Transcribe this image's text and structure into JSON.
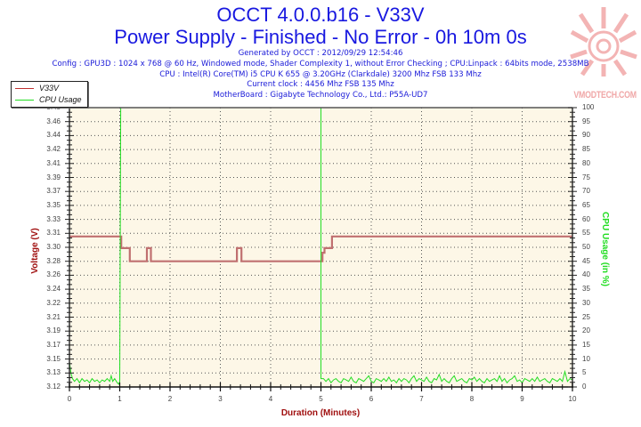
{
  "header": {
    "title": "OCCT 4.0.0.b16 - V33V",
    "subtitle": "Power Supply - Finished - No Error - 0h 10m 0s",
    "info_lines": [
      "Generated by OCCT : 2012/09/29 12:54:46",
      "Config : GPU3D : 1024 x 768 @ 60 Hz, Windowed mode, Shader Complexity 1, without Error Checking ; CPU:Linpack : 64bits mode, 2538MB",
      "CPU : Intel(R) Core(TM) i5 CPU K 655 @ 3.20GHz (Clarkdale) 3200 Mhz FSB 133 Mhz",
      "Current clock : 4456 Mhz FSB 135 Mhz",
      "MotherBoard : Gigabyte Technology Co., Ltd.: P55A-UD7"
    ]
  },
  "watermark": {
    "text": "VMODTECH.COM",
    "icon": "sunburst-logo-icon",
    "color": "#f2a8a8"
  },
  "legend": {
    "items": [
      {
        "label": "V33V",
        "color": "#c03030"
      },
      {
        "label": "CPU Usage",
        "color": "#22dd22"
      }
    ]
  },
  "colors": {
    "title": "#1818e0",
    "plot_background": "#fdf7e7",
    "voltage_line": "#c07070",
    "cpu_line": "#22dd22",
    "left_axis_label": "#a01010",
    "right_axis_label": "#22dd22",
    "grid": "#555555"
  },
  "chart_data": {
    "type": "line",
    "title": "OCCT 4.0.0.b16 - V33V",
    "subtitle": "Power Supply - Finished - No Error - 0h 10m 0s",
    "xlabel": "Duration (Minutes)",
    "ylabel": "Voltage (V)",
    "y2label": "CPU Usage (in %)",
    "xlim": [
      0,
      10
    ],
    "ylim": [
      3.12,
      3.48
    ],
    "y2lim": [
      0,
      100
    ],
    "grid": true,
    "legend_position": "top-left",
    "xticks": [
      "0",
      "1",
      "2",
      "3",
      "4",
      "5",
      "6",
      "7",
      "8",
      "9",
      "10"
    ],
    "yticks_top_to_bottom": [
      "3.48",
      "3.46",
      "3.44",
      "3.42",
      "3.41",
      "3.39",
      "3.37",
      "3.35",
      "3.33",
      "3.31",
      "3.30",
      "3.28",
      "3.26",
      "3.24",
      "3.22",
      "3.21",
      "3.19",
      "3.17",
      "3.15",
      "3.13",
      "3.12"
    ],
    "y2ticks_top_to_bottom": [
      "100",
      "95",
      "90",
      "85",
      "80",
      "75",
      "70",
      "65",
      "60",
      "55",
      "50",
      "45",
      "40",
      "35",
      "30",
      "25",
      "20",
      "15",
      "10",
      "5",
      "0"
    ],
    "series": [
      {
        "name": "V33V",
        "axis": "left",
        "color": "#c07070",
        "points": [
          [
            0,
            3.314
          ],
          [
            1.03,
            3.314
          ],
          [
            1.03,
            3.299
          ],
          [
            1.2,
            3.299
          ],
          [
            1.2,
            3.282
          ],
          [
            1.54,
            3.282
          ],
          [
            1.54,
            3.299
          ],
          [
            1.62,
            3.299
          ],
          [
            1.62,
            3.282
          ],
          [
            3.33,
            3.282
          ],
          [
            3.33,
            3.299
          ],
          [
            3.42,
            3.299
          ],
          [
            3.42,
            3.282
          ],
          [
            5.03,
            3.282
          ],
          [
            5.03,
            3.293
          ],
          [
            5.07,
            3.293
          ],
          [
            5.07,
            3.299
          ],
          [
            5.22,
            3.299
          ],
          [
            5.22,
            3.314
          ],
          [
            10,
            3.314
          ]
        ]
      },
      {
        "name": "CPU Usage",
        "axis": "right",
        "color": "#22dd22",
        "points": [
          [
            0,
            9
          ],
          [
            0.03,
            5
          ],
          [
            0.06,
            3
          ],
          [
            0.1,
            2
          ],
          [
            0.15,
            3
          ],
          [
            0.2,
            1.5
          ],
          [
            0.25,
            3
          ],
          [
            0.3,
            2
          ],
          [
            0.35,
            2.5
          ],
          [
            0.4,
            1.5
          ],
          [
            0.45,
            3
          ],
          [
            0.5,
            2
          ],
          [
            0.55,
            2.5
          ],
          [
            0.6,
            1.5
          ],
          [
            0.65,
            2.5
          ],
          [
            0.7,
            2
          ],
          [
            0.75,
            3
          ],
          [
            0.8,
            2
          ],
          [
            0.83,
            4
          ],
          [
            0.86,
            2
          ],
          [
            0.9,
            3
          ],
          [
            0.95,
            1.5
          ],
          [
            0.98,
            1
          ],
          [
            1.0,
            2
          ],
          [
            1.02,
            100
          ],
          [
            5.0,
            100
          ],
          [
            5.0,
            3
          ],
          [
            5.05,
            3
          ],
          [
            5.1,
            2
          ],
          [
            5.15,
            3
          ],
          [
            5.2,
            1.5
          ],
          [
            5.25,
            2.5
          ],
          [
            5.3,
            3
          ],
          [
            5.35,
            2
          ],
          [
            5.4,
            1.5
          ],
          [
            5.45,
            3
          ],
          [
            5.5,
            2.5
          ],
          [
            5.55,
            2
          ],
          [
            5.6,
            3.5
          ],
          [
            5.65,
            2
          ],
          [
            5.7,
            1.5
          ],
          [
            5.75,
            3
          ],
          [
            5.8,
            2.5
          ],
          [
            5.85,
            2
          ],
          [
            5.9,
            3
          ],
          [
            5.95,
            4
          ],
          [
            6.0,
            2
          ],
          [
            6.05,
            1.5
          ],
          [
            6.1,
            3
          ],
          [
            6.15,
            2.5
          ],
          [
            6.2,
            2
          ],
          [
            6.25,
            3
          ],
          [
            6.3,
            2
          ],
          [
            6.35,
            3.5
          ],
          [
            6.4,
            2
          ],
          [
            6.45,
            2.5
          ],
          [
            6.5,
            1.5
          ],
          [
            6.55,
            3
          ],
          [
            6.6,
            2
          ],
          [
            6.65,
            3
          ],
          [
            6.7,
            2.5
          ],
          [
            6.75,
            1.5
          ],
          [
            6.8,
            3
          ],
          [
            6.85,
            4
          ],
          [
            6.9,
            2
          ],
          [
            6.95,
            3
          ],
          [
            7.0,
            2.5
          ],
          [
            7.05,
            2
          ],
          [
            7.1,
            3.5
          ],
          [
            7.15,
            2
          ],
          [
            7.2,
            1.5
          ],
          [
            7.25,
            3
          ],
          [
            7.3,
            2.5
          ],
          [
            7.35,
            4.5
          ],
          [
            7.4,
            2
          ],
          [
            7.45,
            3
          ],
          [
            7.5,
            2
          ],
          [
            7.55,
            1.5
          ],
          [
            7.6,
            3
          ],
          [
            7.65,
            4
          ],
          [
            7.7,
            2
          ],
          [
            7.75,
            2.5
          ],
          [
            7.8,
            3
          ],
          [
            7.85,
            2
          ],
          [
            7.9,
            1.5
          ],
          [
            7.95,
            3
          ],
          [
            8.0,
            2.5
          ],
          [
            8.05,
            3.5
          ],
          [
            8.1,
            2
          ],
          [
            8.15,
            3
          ],
          [
            8.2,
            2
          ],
          [
            8.25,
            1.5
          ],
          [
            8.3,
            3
          ],
          [
            8.35,
            2
          ],
          [
            8.4,
            2.5
          ],
          [
            8.45,
            3
          ],
          [
            8.5,
            2
          ],
          [
            8.55,
            4
          ],
          [
            8.6,
            2
          ],
          [
            8.65,
            3
          ],
          [
            8.7,
            1.5
          ],
          [
            8.75,
            2.5
          ],
          [
            8.8,
            3
          ],
          [
            8.85,
            4
          ],
          [
            8.9,
            2
          ],
          [
            8.95,
            2.5
          ],
          [
            9.0,
            1.5
          ],
          [
            9.05,
            3
          ],
          [
            9.1,
            2.5
          ],
          [
            9.15,
            2
          ],
          [
            9.2,
            3
          ],
          [
            9.25,
            2
          ],
          [
            9.3,
            3.5
          ],
          [
            9.35,
            2
          ],
          [
            9.4,
            2.5
          ],
          [
            9.45,
            3
          ],
          [
            9.5,
            2
          ],
          [
            9.55,
            1.5
          ],
          [
            9.6,
            3
          ],
          [
            9.65,
            2.5
          ],
          [
            9.7,
            2
          ],
          [
            9.75,
            3
          ],
          [
            9.8,
            2
          ],
          [
            9.85,
            5.5
          ],
          [
            9.9,
            2
          ],
          [
            9.95,
            3
          ],
          [
            10.0,
            2.5
          ]
        ]
      }
    ]
  }
}
